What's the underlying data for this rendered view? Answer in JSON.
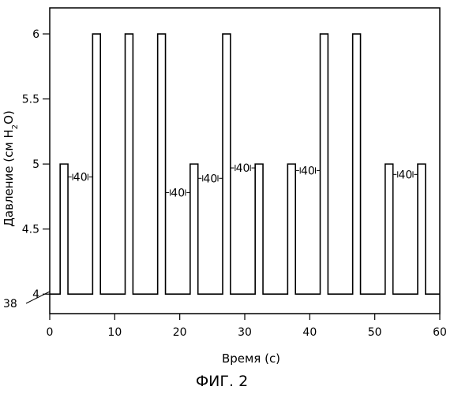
{
  "chart_data": {
    "type": "line",
    "xlabel": "Время (с)",
    "ylabel_parts": [
      "Давление (см H",
      "2",
      "O)"
    ],
    "xlim": [
      0,
      60
    ],
    "ylim": [
      3.85,
      6.2
    ],
    "xticks": [
      0,
      10,
      20,
      30,
      40,
      50,
      60
    ],
    "xtick_labels": [
      "0",
      "10",
      "20",
      "30",
      "40",
      "50",
      "60"
    ],
    "yticks": [
      4,
      4.5,
      5,
      5.5,
      6
    ],
    "ytick_labels": [
      "4",
      "4.5",
      "5",
      "5.5",
      "6"
    ],
    "grid": false,
    "baseline": 4,
    "pulses": [
      {
        "start": 1.6,
        "end": 2.8,
        "value": 5
      },
      {
        "start": 6.6,
        "end": 7.8,
        "value": 6
      },
      {
        "start": 11.6,
        "end": 12.8,
        "value": 6
      },
      {
        "start": 16.6,
        "end": 17.8,
        "value": 6
      },
      {
        "start": 21.6,
        "end": 22.8,
        "value": 5
      },
      {
        "start": 26.6,
        "end": 27.8,
        "value": 6
      },
      {
        "start": 31.6,
        "end": 32.8,
        "value": 5
      },
      {
        "start": 36.6,
        "end": 37.8,
        "value": 5
      },
      {
        "start": 41.6,
        "end": 42.8,
        "value": 6
      },
      {
        "start": 46.6,
        "end": 47.8,
        "value": 6
      },
      {
        "start": 51.6,
        "end": 52.8,
        "value": 5
      },
      {
        "start": 56.6,
        "end": 57.8,
        "value": 5
      }
    ],
    "annotations": [
      {
        "label": "40",
        "x_from": 2.8,
        "x_to": 6.6,
        "y": 4.9
      },
      {
        "label": "40",
        "x_from": 17.8,
        "x_to": 21.6,
        "y": 4.78
      },
      {
        "label": "40",
        "x_from": 22.8,
        "x_to": 26.6,
        "y": 4.89
      },
      {
        "label": "40",
        "x_from": 27.8,
        "x_to": 31.6,
        "y": 4.97
      },
      {
        "label": "40",
        "x_from": 37.8,
        "x_to": 41.6,
        "y": 4.95
      },
      {
        "label": "40",
        "x_from": 52.8,
        "x_to": 56.6,
        "y": 4.92
      }
    ],
    "reference_label": "38"
  },
  "figure_caption": "ФИГ. 2"
}
